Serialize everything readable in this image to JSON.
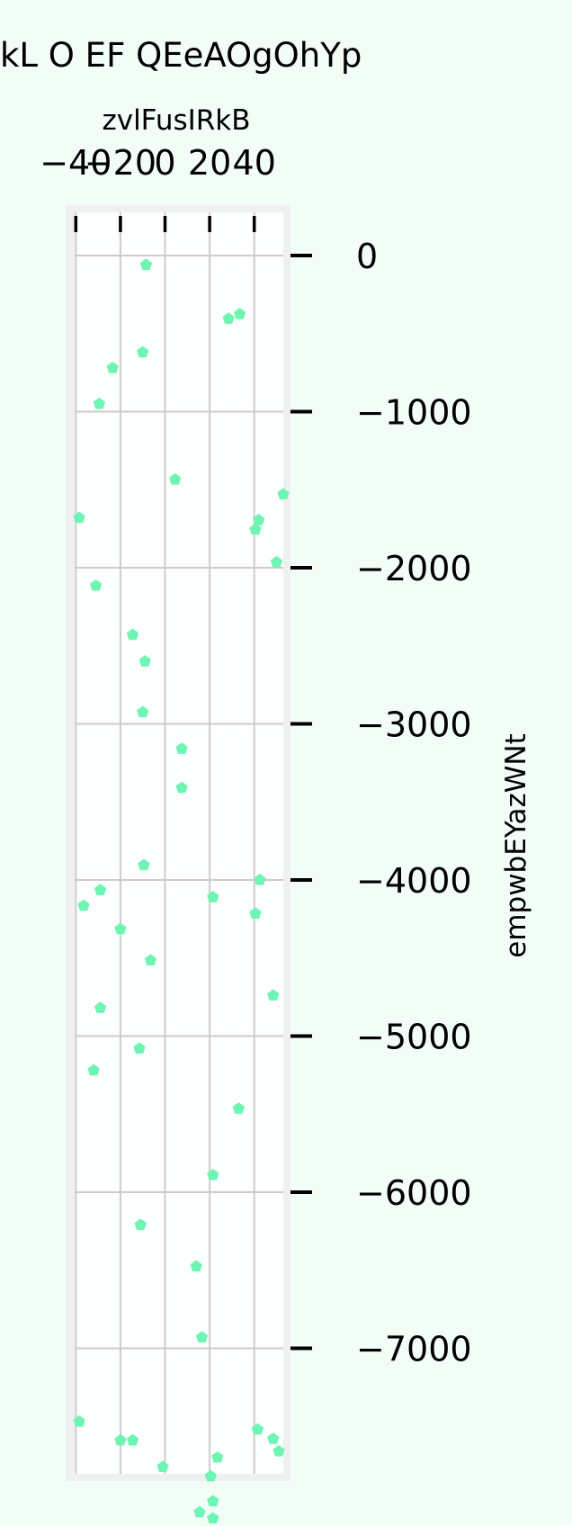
{
  "chart_data": {
    "type": "scatter",
    "title": "kL O EF QEeAOgOhYp",
    "xlabel": "zvlFusIRkB",
    "ylabel": "empwbEYazWNt",
    "x_ticks": [
      -40,
      -20,
      0,
      20,
      40
    ],
    "x_tick_labels": [
      "−40",
      "−20",
      "0",
      "20",
      "40"
    ],
    "y_ticks": [
      0,
      -1000,
      -2000,
      -3000,
      -4000,
      -5000,
      -6000,
      -7000
    ],
    "y_tick_labels": [
      "0",
      "−1000",
      "−2000",
      "−3000",
      "−4000",
      "−5000",
      "−6000",
      "−7000"
    ],
    "xlim": [
      -40,
      50
    ],
    "ylim": [
      -7800,
      300
    ],
    "x_axis_position": "top",
    "y_axis_position": "right",
    "grid": true,
    "marker": "pentagon",
    "marker_color": "#6ef5b4",
    "x": [
      -8.5,
      28.5,
      33.5,
      -10,
      -23.5,
      -29.5,
      4.5,
      53,
      -38.5,
      40.5,
      42,
      -31,
      50,
      -14.5,
      -9,
      -10,
      7.5,
      7.5,
      42.5,
      -9.5,
      -20,
      -29,
      -36.5,
      40.5,
      -6.5,
      21.5,
      -29,
      -11.5,
      48.5,
      -32,
      33,
      21.5,
      -11,
      14,
      16.5,
      -38.5,
      20.5,
      21.5,
      41.5,
      -20,
      -14.5,
      48.5,
      51,
      23.5,
      -1,
      15.5,
      21.5
    ],
    "y": [
      -60,
      -405,
      -375,
      -620,
      -720,
      -950,
      -1435,
      -1530,
      -1680,
      -1755,
      -1695,
      -2115,
      -1965,
      -2430,
      -2600,
      -2925,
      -3160,
      -3410,
      -4000,
      -3905,
      -4315,
      -4065,
      -4165,
      -4215,
      -4515,
      -4110,
      -4820,
      -5080,
      -4740,
      -5220,
      -5465,
      -5890,
      -6210,
      -6475,
      -6930,
      -7470,
      -7820,
      -7980,
      -7520,
      -7590,
      -7590,
      -7580,
      -7660,
      -7700,
      -7760,
      -8050,
      -8090
    ]
  }
}
